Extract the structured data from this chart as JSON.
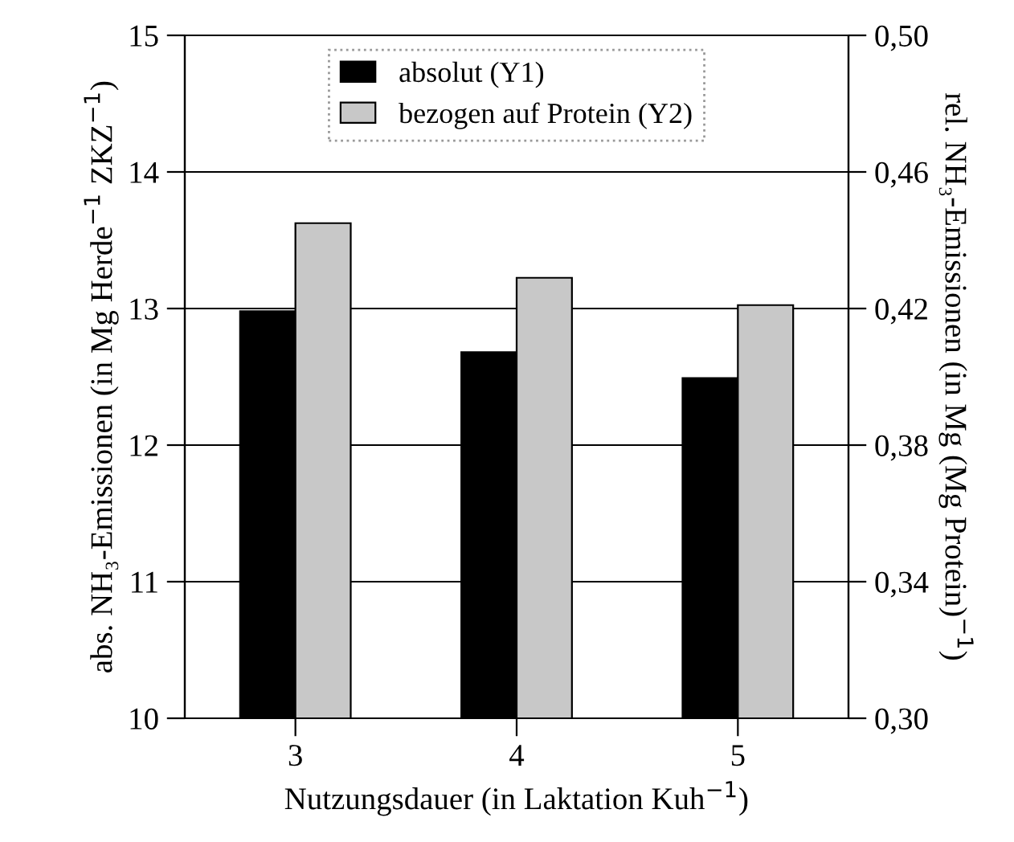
{
  "chart_data": {
    "type": "bar",
    "categories": [
      "3",
      "4",
      "5"
    ],
    "xlabel": "Nutzungsdauer (in Laktation Kuh$^{−1}$)",
    "ylabel": "abs. NH₃-Emissionen (in Mg Herde$^{−1}$ ZKZ$^{−1}$)",
    "y2label": "rel. NH₃-Emissionen (in Mg (Mg Protein)$^{−1}$)",
    "series": [
      {
        "name": "absolut (Y1)",
        "color": "#000000",
        "values": [
          12.98,
          12.68,
          12.49
        ]
      },
      {
        "name": "bezogen auf Protein (Y2)",
        "color": "#c8c8c8",
        "values": [
          0.445,
          0.429,
          0.421
        ],
        "axis": "y2"
      }
    ],
    "ylim": [
      10,
      15
    ],
    "yticks": [
      10,
      11,
      12,
      13,
      14,
      15
    ],
    "y2lim": [
      0.3,
      0.5
    ],
    "y2ticks": [
      {
        "value": 0.3,
        "label": "0,30"
      },
      {
        "value": 0.34,
        "label": "0,34"
      },
      {
        "value": 0.38,
        "label": "0,38"
      },
      {
        "value": 0.42,
        "label": "0,42"
      },
      {
        "value": 0.46,
        "label": "0,46"
      },
      {
        "value": 0.5,
        "label": "0,50"
      }
    ],
    "grid": "y",
    "legend": "top"
  }
}
